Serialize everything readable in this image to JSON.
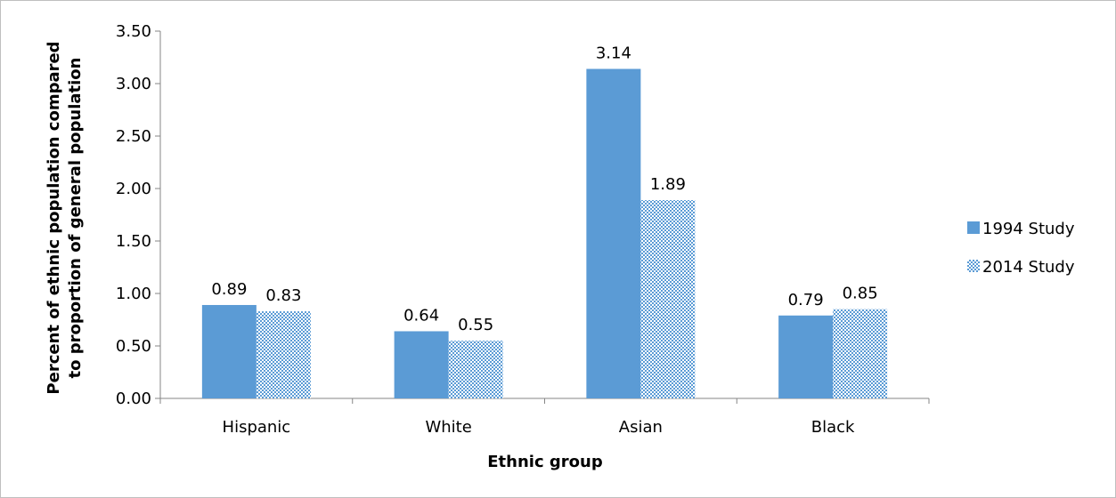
{
  "chart_data": {
    "type": "bar",
    "categories": [
      "Hispanic",
      "White",
      "Asian",
      "Black"
    ],
    "series": [
      {
        "name": "1994 Study",
        "values": [
          0.89,
          0.64,
          3.14,
          0.79
        ],
        "labels": [
          "0.89",
          "0.64",
          "3.14",
          "0.79"
        ],
        "color": "#5b9bd5",
        "fill": "solid"
      },
      {
        "name": "2014 Study",
        "values": [
          0.83,
          0.55,
          1.89,
          0.85
        ],
        "labels": [
          "0.83",
          "0.55",
          "1.89",
          "0.85"
        ],
        "color": "#5b9bd5",
        "fill": "dotted-pattern"
      }
    ],
    "xlabel": "Ethnic group",
    "ylabel_lines": [
      "Percent of ethnic population compared",
      "to proportion of general population"
    ],
    "ylim": [
      0,
      3.5
    ],
    "yticks": [
      "0.00",
      "0.50",
      "1.00",
      "1.50",
      "2.00",
      "2.50",
      "3.00",
      "3.50"
    ],
    "grid": false,
    "legend_position": "right"
  }
}
